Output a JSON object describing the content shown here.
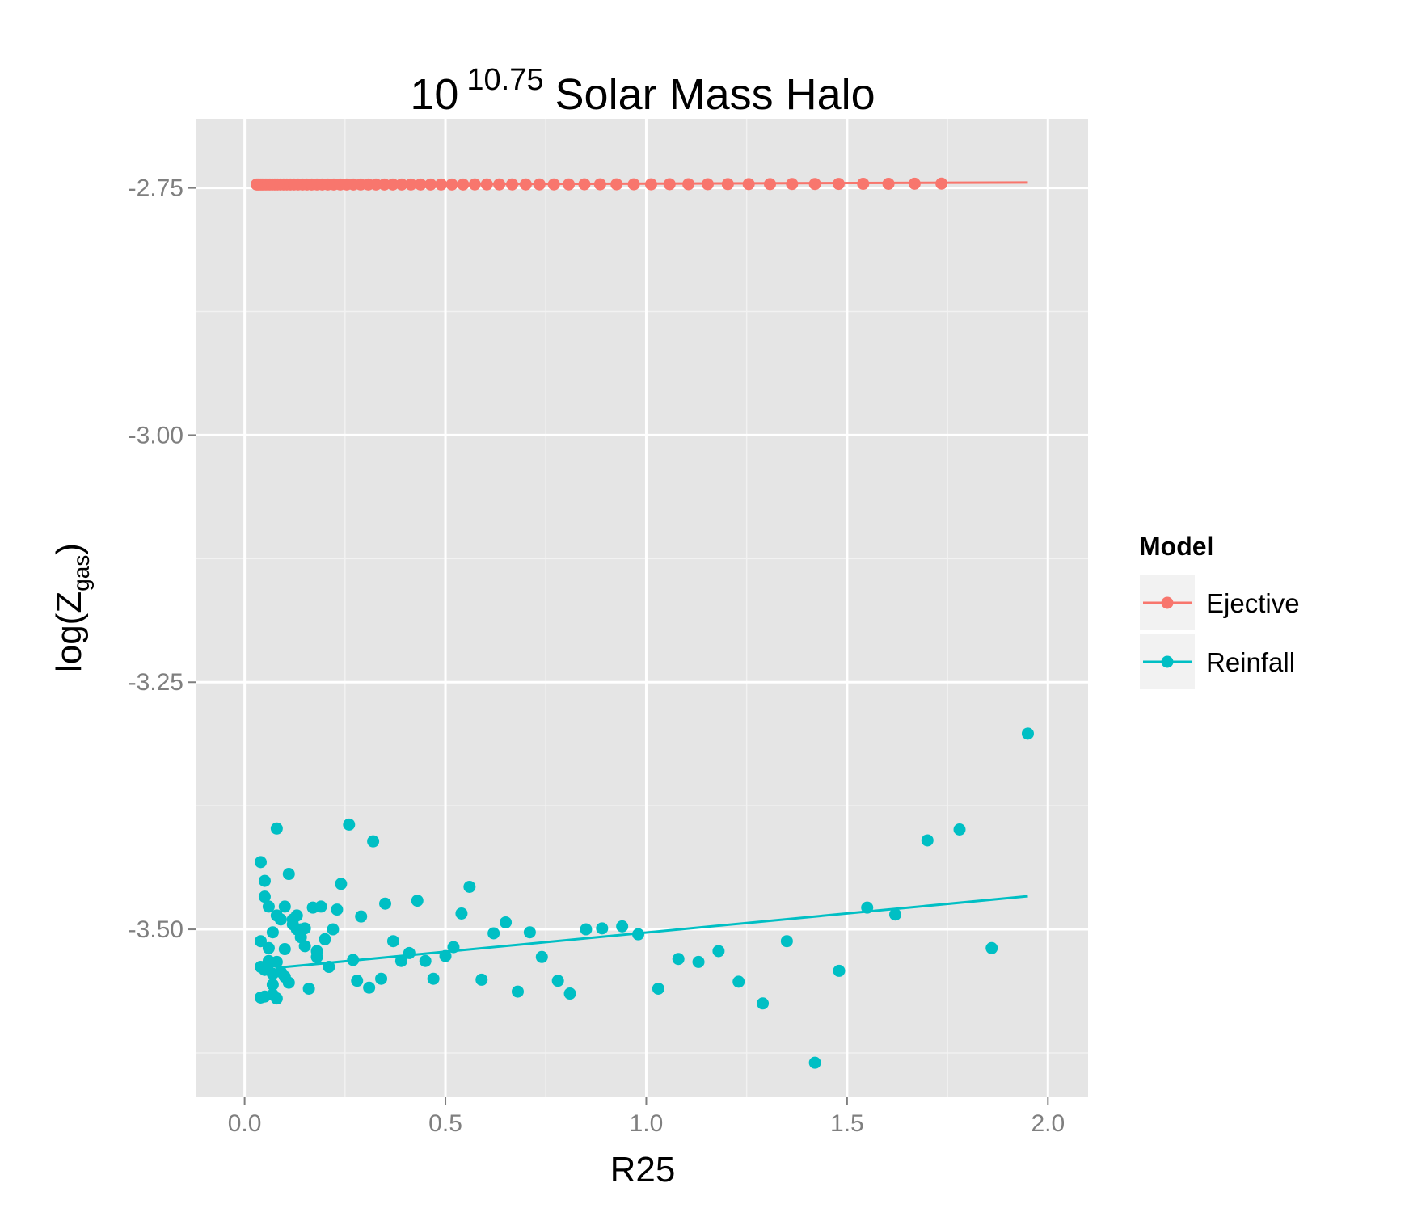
{
  "chart_data": {
    "type": "scatter",
    "title_base": "10",
    "title_exponent": "10.75",
    "title_rest": "Solar Mass Halo",
    "xlabel": "R25",
    "ylabel_main": "log(Z",
    "ylabel_sub": "gas",
    "ylabel_close": ")",
    "xlim": [
      -0.12,
      2.1
    ],
    "ylim": [
      -3.67,
      -2.68
    ],
    "xticks": [
      0.0,
      0.5,
      1.0,
      1.5,
      2.0
    ],
    "xtick_labels": [
      "0.0",
      "0.5",
      "1.0",
      "1.5",
      "2.0"
    ],
    "yticks": [
      -2.75,
      -3.0,
      -3.25,
      -3.5
    ],
    "ytick_labels": [
      "-2.75",
      "-3.00",
      "-3.25",
      "-3.50"
    ],
    "grid": true,
    "legend": {
      "title": "Model",
      "position": "right"
    },
    "series": [
      {
        "name": "Ejective",
        "color": "#F8766D",
        "x": [
          0.03,
          0.033,
          0.036,
          0.04,
          0.044,
          0.048,
          0.053,
          0.058,
          0.063,
          0.069,
          0.075,
          0.082,
          0.089,
          0.097,
          0.105,
          0.114,
          0.123,
          0.133,
          0.144,
          0.155,
          0.167,
          0.18,
          0.193,
          0.207,
          0.222,
          0.238,
          0.254,
          0.271,
          0.289,
          0.308,
          0.327,
          0.348,
          0.369,
          0.391,
          0.414,
          0.438,
          0.463,
          0.489,
          0.516,
          0.544,
          0.573,
          0.603,
          0.634,
          0.666,
          0.7,
          0.734,
          0.77,
          0.807,
          0.846,
          0.885,
          0.926,
          0.969,
          1.012,
          1.058,
          1.105,
          1.153,
          1.203,
          1.255,
          1.308,
          1.363,
          1.42,
          1.479,
          1.54,
          1.603,
          1.668,
          1.735
        ],
        "y": [
          -2.7465,
          -2.7465,
          -2.7465,
          -2.7465,
          -2.7465,
          -2.7465,
          -2.7465,
          -2.7465,
          -2.7465,
          -2.7465,
          -2.7465,
          -2.7465,
          -2.7465,
          -2.7465,
          -2.7465,
          -2.7465,
          -2.7465,
          -2.7465,
          -2.7465,
          -2.7465,
          -2.7465,
          -2.7465,
          -2.7465,
          -2.7465,
          -2.7465,
          -2.7465,
          -2.7465,
          -2.7465,
          -2.7465,
          -2.7465,
          -2.7465,
          -2.7465,
          -2.7465,
          -2.7465,
          -2.7465,
          -2.7465,
          -2.7465,
          -2.7465,
          -2.7465,
          -2.7465,
          -2.7464,
          -2.7464,
          -2.7464,
          -2.7464,
          -2.7464,
          -2.7464,
          -2.7464,
          -2.7464,
          -2.7463,
          -2.7463,
          -2.7463,
          -2.7463,
          -2.7463,
          -2.7462,
          -2.7462,
          -2.7462,
          -2.7461,
          -2.7461,
          -2.7461,
          -2.746,
          -2.746,
          -2.7459,
          -2.7458,
          -2.7458,
          -2.7457,
          -2.7456
        ],
        "fit_x": [
          0.03,
          1.95
        ],
        "fit_y": [
          -2.7467,
          -2.7445
        ]
      },
      {
        "name": "Reinfall",
        "color": "#00BFC4",
        "x": [
          0.04,
          0.04,
          0.04,
          0.05,
          0.05,
          0.05,
          0.06,
          0.06,
          0.06,
          0.07,
          0.07,
          0.07,
          0.08,
          0.08,
          0.08,
          0.09,
          0.09,
          0.1,
          0.1,
          0.11,
          0.11,
          0.12,
          0.13,
          0.13,
          0.14,
          0.14,
          0.15,
          0.15,
          0.16,
          0.17,
          0.18,
          0.18,
          0.19,
          0.2,
          0.21,
          0.22,
          0.23,
          0.24,
          0.26,
          0.27,
          0.28,
          0.29,
          0.31,
          0.32,
          0.34,
          0.35,
          0.37,
          0.39,
          0.41,
          0.43,
          0.45,
          0.47,
          0.5,
          0.52,
          0.54,
          0.56,
          0.59,
          0.62,
          0.65,
          0.68,
          0.71,
          0.74,
          0.78,
          0.81,
          0.85,
          0.89,
          0.94,
          0.98,
          1.03,
          1.08,
          1.13,
          1.18,
          1.23,
          1.29,
          1.35,
          1.42,
          1.48,
          1.55,
          1.62,
          1.7,
          1.78,
          1.86,
          1.95,
          0.05,
          0.04,
          0.06,
          0.08,
          0.1,
          0.07,
          0.12
        ],
        "y": [
          -3.432,
          -3.538,
          -3.569,
          -3.451,
          -3.467,
          -3.541,
          -3.477,
          -3.519,
          -3.532,
          -3.556,
          -3.566,
          -3.503,
          -3.398,
          -3.486,
          -3.533,
          -3.543,
          -3.49,
          -3.477,
          -3.548,
          -3.444,
          -3.554,
          -3.49,
          -3.486,
          -3.5,
          -3.508,
          -3.5,
          -3.517,
          -3.499,
          -3.56,
          -3.478,
          -3.528,
          -3.522,
          -3.477,
          -3.51,
          -3.538,
          -3.5,
          -3.48,
          -3.454,
          -3.394,
          -3.531,
          -3.552,
          -3.487,
          -3.559,
          -3.411,
          -3.55,
          -3.474,
          -3.512,
          -3.532,
          -3.524,
          -3.471,
          -3.532,
          -3.55,
          -3.527,
          -3.518,
          -3.484,
          -3.457,
          -3.551,
          -3.504,
          -3.493,
          -3.563,
          -3.503,
          -3.528,
          -3.552,
          -3.565,
          -3.5,
          -3.499,
          -3.497,
          -3.505,
          -3.56,
          -3.53,
          -3.533,
          -3.522,
          -3.553,
          -3.575,
          -3.512,
          -3.635,
          -3.542,
          -3.478,
          -3.485,
          -3.41,
          -3.399,
          -3.519,
          -3.302,
          -3.568,
          -3.512,
          -3.535,
          -3.57,
          -3.52,
          -3.545,
          -3.495
        ],
        "fit_x": [
          0.09,
          1.95
        ],
        "fit_y": [
          -3.5385,
          -3.4665
        ]
      }
    ]
  }
}
